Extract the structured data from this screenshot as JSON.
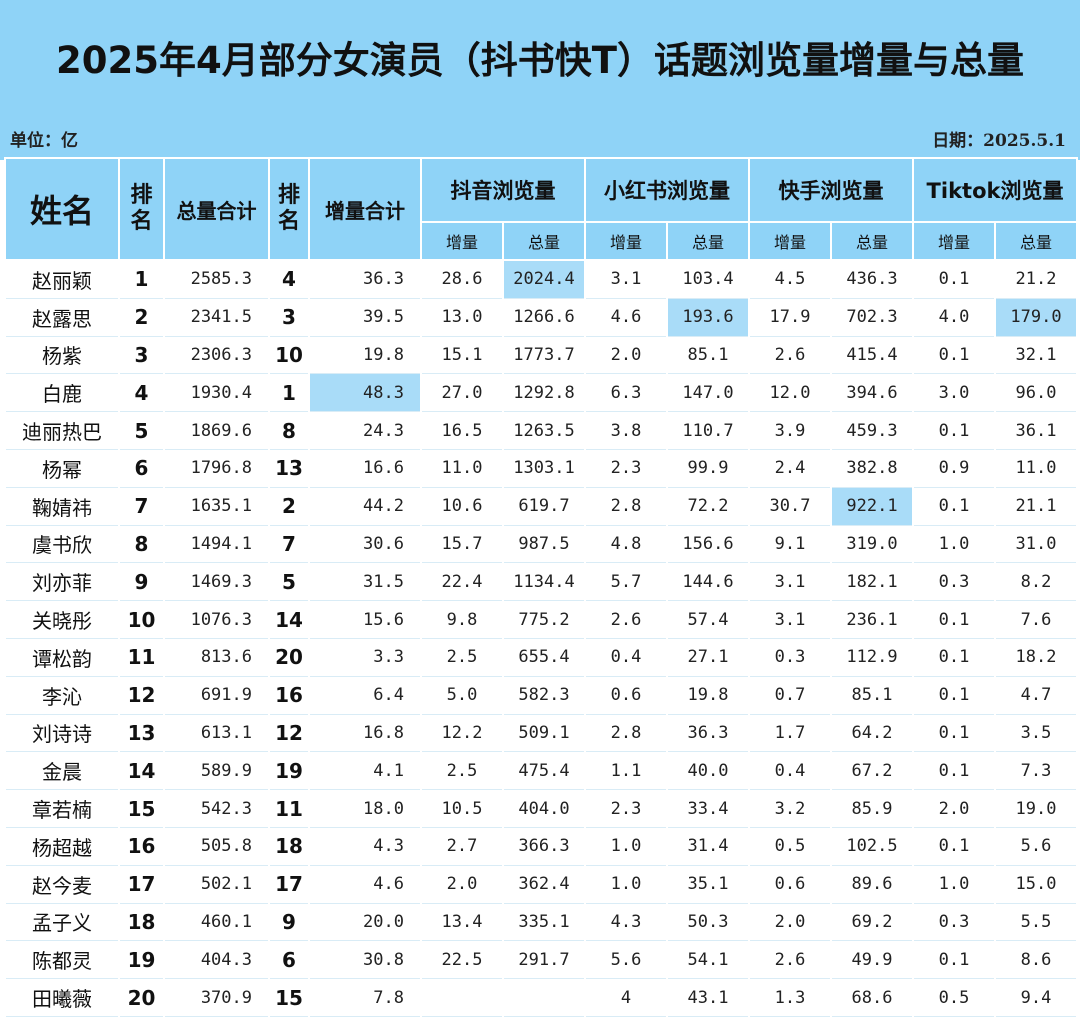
{
  "title": "2025年4月部分女演员（抖书快T）话题浏览量增量与总量",
  "unit": "单位：亿",
  "date": "日期：2025.5.1",
  "headers": {
    "name": "姓名",
    "rank1": "排名",
    "total": "总量合计",
    "rank2": "排名",
    "increase": "增量合计",
    "platforms": [
      "抖音浏览量",
      "小红书浏览量",
      "快手浏览量",
      "Tiktok浏览量"
    ],
    "sub_increase": "增量",
    "sub_total": "总量"
  },
  "rows": [
    {
      "name": "赵丽颖",
      "rank": "1",
      "total": "2585.3",
      "inc_rank": "4",
      "inc": "36.3",
      "dy_inc": "28.6",
      "dy_tot": "2024.4",
      "xhs_inc": "3.1",
      "xhs_tot": "103.4",
      "ks_inc": "4.5",
      "ks_tot": "436.3",
      "tt_inc": "0.1",
      "tt_tot": "21.2"
    },
    {
      "name": "赵露思",
      "rank": "2",
      "total": "2341.5",
      "inc_rank": "3",
      "inc": "39.5",
      "dy_inc": "13.0",
      "dy_tot": "1266.6",
      "xhs_inc": "4.6",
      "xhs_tot": "193.6",
      "ks_inc": "17.9",
      "ks_tot": "702.3",
      "tt_inc": "4.0",
      "tt_tot": "179.0"
    },
    {
      "name": "杨紫",
      "rank": "3",
      "total": "2306.3",
      "inc_rank": "10",
      "inc": "19.8",
      "dy_inc": "15.1",
      "dy_tot": "1773.7",
      "xhs_inc": "2.0",
      "xhs_tot": "85.1",
      "ks_inc": "2.6",
      "ks_tot": "415.4",
      "tt_inc": "0.1",
      "tt_tot": "32.1"
    },
    {
      "name": "白鹿",
      "rank": "4",
      "total": "1930.4",
      "inc_rank": "1",
      "inc": "48.3",
      "dy_inc": "27.0",
      "dy_tot": "1292.8",
      "xhs_inc": "6.3",
      "xhs_tot": "147.0",
      "ks_inc": "12.0",
      "ks_tot": "394.6",
      "tt_inc": "3.0",
      "tt_tot": "96.0"
    },
    {
      "name": "迪丽热巴",
      "rank": "5",
      "total": "1869.6",
      "inc_rank": "8",
      "inc": "24.3",
      "dy_inc": "16.5",
      "dy_tot": "1263.5",
      "xhs_inc": "3.8",
      "xhs_tot": "110.7",
      "ks_inc": "3.9",
      "ks_tot": "459.3",
      "tt_inc": "0.1",
      "tt_tot": "36.1"
    },
    {
      "name": "杨幂",
      "rank": "6",
      "total": "1796.8",
      "inc_rank": "13",
      "inc": "16.6",
      "dy_inc": "11.0",
      "dy_tot": "1303.1",
      "xhs_inc": "2.3",
      "xhs_tot": "99.9",
      "ks_inc": "2.4",
      "ks_tot": "382.8",
      "tt_inc": "0.9",
      "tt_tot": "11.0"
    },
    {
      "name": "鞠婧祎",
      "rank": "7",
      "total": "1635.1",
      "inc_rank": "2",
      "inc": "44.2",
      "dy_inc": "10.6",
      "dy_tot": "619.7",
      "xhs_inc": "2.8",
      "xhs_tot": "72.2",
      "ks_inc": "30.7",
      "ks_tot": "922.1",
      "tt_inc": "0.1",
      "tt_tot": "21.1"
    },
    {
      "name": "虞书欣",
      "rank": "8",
      "total": "1494.1",
      "inc_rank": "7",
      "inc": "30.6",
      "dy_inc": "15.7",
      "dy_tot": "987.5",
      "xhs_inc": "4.8",
      "xhs_tot": "156.6",
      "ks_inc": "9.1",
      "ks_tot": "319.0",
      "tt_inc": "1.0",
      "tt_tot": "31.0"
    },
    {
      "name": "刘亦菲",
      "rank": "9",
      "total": "1469.3",
      "inc_rank": "5",
      "inc": "31.5",
      "dy_inc": "22.4",
      "dy_tot": "1134.4",
      "xhs_inc": "5.7",
      "xhs_tot": "144.6",
      "ks_inc": "3.1",
      "ks_tot": "182.1",
      "tt_inc": "0.3",
      "tt_tot": "8.2"
    },
    {
      "name": "关晓彤",
      "rank": "10",
      "total": "1076.3",
      "inc_rank": "14",
      "inc": "15.6",
      "dy_inc": "9.8",
      "dy_tot": "775.2",
      "xhs_inc": "2.6",
      "xhs_tot": "57.4",
      "ks_inc": "3.1",
      "ks_tot": "236.1",
      "tt_inc": "0.1",
      "tt_tot": "7.6"
    },
    {
      "name": "谭松韵",
      "rank": "11",
      "total": "813.6",
      "inc_rank": "20",
      "inc": "3.3",
      "dy_inc": "2.5",
      "dy_tot": "655.4",
      "xhs_inc": "0.4",
      "xhs_tot": "27.1",
      "ks_inc": "0.3",
      "ks_tot": "112.9",
      "tt_inc": "0.1",
      "tt_tot": "18.2"
    },
    {
      "name": "李沁",
      "rank": "12",
      "total": "691.9",
      "inc_rank": "16",
      "inc": "6.4",
      "dy_inc": "5.0",
      "dy_tot": "582.3",
      "xhs_inc": "0.6",
      "xhs_tot": "19.8",
      "ks_inc": "0.7",
      "ks_tot": "85.1",
      "tt_inc": "0.1",
      "tt_tot": "4.7"
    },
    {
      "name": "刘诗诗",
      "rank": "13",
      "total": "613.1",
      "inc_rank": "12",
      "inc": "16.8",
      "dy_inc": "12.2",
      "dy_tot": "509.1",
      "xhs_inc": "2.8",
      "xhs_tot": "36.3",
      "ks_inc": "1.7",
      "ks_tot": "64.2",
      "tt_inc": "0.1",
      "tt_tot": "3.5"
    },
    {
      "name": "金晨",
      "rank": "14",
      "total": "589.9",
      "inc_rank": "19",
      "inc": "4.1",
      "dy_inc": "2.5",
      "dy_tot": "475.4",
      "xhs_inc": "1.1",
      "xhs_tot": "40.0",
      "ks_inc": "0.4",
      "ks_tot": "67.2",
      "tt_inc": "0.1",
      "tt_tot": "7.3"
    },
    {
      "name": "章若楠",
      "rank": "15",
      "total": "542.3",
      "inc_rank": "11",
      "inc": "18.0",
      "dy_inc": "10.5",
      "dy_tot": "404.0",
      "xhs_inc": "2.3",
      "xhs_tot": "33.4",
      "ks_inc": "3.2",
      "ks_tot": "85.9",
      "tt_inc": "2.0",
      "tt_tot": "19.0"
    },
    {
      "name": "杨超越",
      "rank": "16",
      "total": "505.8",
      "inc_rank": "18",
      "inc": "4.3",
      "dy_inc": "2.7",
      "dy_tot": "366.3",
      "xhs_inc": "1.0",
      "xhs_tot": "31.4",
      "ks_inc": "0.5",
      "ks_tot": "102.5",
      "tt_inc": "0.1",
      "tt_tot": "5.6"
    },
    {
      "name": "赵今麦",
      "rank": "17",
      "total": "502.1",
      "inc_rank": "17",
      "inc": "4.6",
      "dy_inc": "2.0",
      "dy_tot": "362.4",
      "xhs_inc": "1.0",
      "xhs_tot": "35.1",
      "ks_inc": "0.6",
      "ks_tot": "89.6",
      "tt_inc": "1.0",
      "tt_tot": "15.0"
    },
    {
      "name": "孟子义",
      "rank": "18",
      "total": "460.1",
      "inc_rank": "9",
      "inc": "20.0",
      "dy_inc": "13.4",
      "dy_tot": "335.1",
      "xhs_inc": "4.3",
      "xhs_tot": "50.3",
      "ks_inc": "2.0",
      "ks_tot": "69.2",
      "tt_inc": "0.3",
      "tt_tot": "5.5"
    },
    {
      "name": "陈都灵",
      "rank": "19",
      "total": "404.3",
      "inc_rank": "6",
      "inc": "30.8",
      "dy_inc": "22.5",
      "dy_tot": "291.7",
      "xhs_inc": "5.6",
      "xhs_tot": "54.1",
      "ks_inc": "2.6",
      "ks_tot": "49.9",
      "tt_inc": "0.1",
      "tt_tot": "8.6"
    },
    {
      "name": "田曦薇",
      "rank": "20",
      "total": "370.9",
      "inc_rank": "15",
      "inc": "7.8",
      "dy_inc": "",
      "dy_tot": "",
      "xhs_inc": "4",
      "xhs_tot": "43.1",
      "ks_inc": "1.3",
      "ks_tot": "68.6",
      "tt_inc": "0.5",
      "tt_tot": "9.4"
    }
  ],
  "highlights": [
    {
      "row": 0,
      "col": "dy_tot"
    },
    {
      "row": 1,
      "col": "xhs_tot"
    },
    {
      "row": 1,
      "col": "tt_tot"
    },
    {
      "row": 3,
      "col": "inc"
    },
    {
      "row": 6,
      "col": "ks_tot"
    }
  ],
  "colors": {
    "header_bg": "#8fd3f7",
    "highlight": "#a9dcf8",
    "text": "#111111"
  }
}
